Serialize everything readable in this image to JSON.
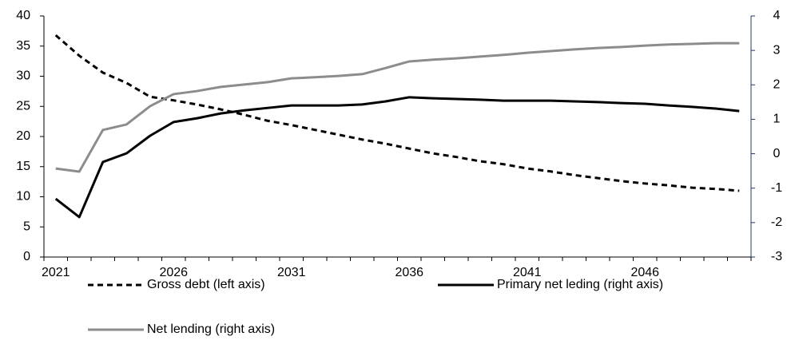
{
  "chart_data": {
    "type": "line",
    "categories": [
      "2021",
      null,
      null,
      null,
      null,
      "2026",
      null,
      null,
      null,
      null,
      "2031",
      null,
      null,
      null,
      null,
      "2036",
      null,
      null,
      null,
      null,
      "2041",
      null,
      null,
      null,
      null,
      "2046",
      null,
      null,
      null,
      null
    ],
    "ylim": [
      0,
      40
    ],
    "yticks": [
      0,
      5,
      10,
      15,
      20,
      25,
      30,
      35,
      40
    ],
    "y2lim": [
      -3,
      4
    ],
    "y2ticks": [
      -3,
      -2,
      -1,
      0,
      1,
      2,
      3,
      4
    ],
    "series": [
      {
        "name": "Gross debt (left axis)",
        "color": "#000000",
        "dashed": true,
        "values": [
          36.8,
          33.4,
          30.6,
          28.9,
          26.6,
          26.0,
          25.3,
          24.5,
          23.6,
          22.6,
          21.9,
          21.1,
          20.3,
          19.5,
          18.8,
          18.0,
          17.2,
          16.6,
          15.9,
          15.4,
          14.7,
          14.2,
          13.6,
          13.1,
          12.6,
          12.2,
          11.9,
          11.5,
          11.3,
          11.0
        ]
      },
      {
        "name": "Primary net leding (right axis)",
        "color": "#000000",
        "axis": "y2",
        "values": [
          -1.31,
          -1.84,
          -0.24,
          0.01,
          0.52,
          0.92,
          1.03,
          1.17,
          1.26,
          1.33,
          1.4,
          1.4,
          1.4,
          1.43,
          1.52,
          1.64,
          1.61,
          1.59,
          1.57,
          1.54,
          1.54,
          1.54,
          1.52,
          1.5,
          1.47,
          1.45,
          1.4,
          1.36,
          1.31,
          1.24
        ]
      },
      {
        "name": "Net lending (right axis)",
        "color": "#8c8c8c",
        "axis": "y2",
        "values": [
          -0.43,
          -0.52,
          0.69,
          0.85,
          1.38,
          1.73,
          1.82,
          1.94,
          2.01,
          2.08,
          2.19,
          2.22,
          2.26,
          2.31,
          2.49,
          2.68,
          2.73,
          2.77,
          2.82,
          2.87,
          2.93,
          2.98,
          3.03,
          3.07,
          3.1,
          3.14,
          3.17,
          3.19,
          3.21,
          3.21
        ]
      }
    ]
  }
}
